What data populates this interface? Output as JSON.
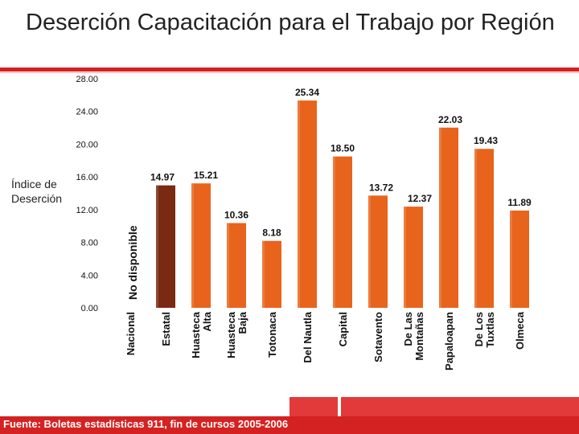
{
  "title": "Deserción Capacitación para el Trabajo por Región",
  "footer": "Fuente: Boletas estadísticas 911, fin de cursos 2005-2006",
  "colors": {
    "bar": "#e8641c",
    "bar_highlight": "#7a2a10",
    "accent": "#d42222"
  },
  "chart_data": {
    "type": "bar",
    "ylabel": "Índice de Deserción",
    "ylim": [
      0,
      28
    ],
    "yticks": [
      "0.00",
      "4.00",
      "8.00",
      "12.00",
      "16.00",
      "20.00",
      "24.00",
      "28.00"
    ],
    "grid": false,
    "categories": [
      "Nacional",
      "Estatal",
      "Huasteca Alta",
      "Huasteca Baja",
      "Totonaca",
      "Del Nautla",
      "Capital",
      "Sotavento",
      "De Las Montañas",
      "Papaloapan",
      "De Los Tuxtlas",
      "Olmeca"
    ],
    "category_lines": [
      [
        "Nacional"
      ],
      [
        "Estatal"
      ],
      [
        "Huasteca",
        "Alta"
      ],
      [
        "Huasteca",
        "Baja"
      ],
      [
        "Totonaca"
      ],
      [
        "Del Nautla"
      ],
      [
        "Capital"
      ],
      [
        "Sotavento"
      ],
      [
        "De Las",
        "Montañas"
      ],
      [
        "Papaloapan"
      ],
      [
        "De Los",
        "Tuxtlas"
      ],
      [
        "Olmeca"
      ]
    ],
    "values": [
      null,
      14.97,
      15.21,
      10.36,
      8.18,
      25.34,
      18.5,
      13.72,
      12.37,
      22.03,
      19.43,
      11.89
    ],
    "value_labels": [
      "",
      "14.97",
      "15.21",
      "10.36",
      "8.18",
      "25.34",
      "18.50",
      "13.72",
      "12.37",
      "22.03",
      "19.43",
      "11.89"
    ],
    "annotation": "No disponible"
  }
}
